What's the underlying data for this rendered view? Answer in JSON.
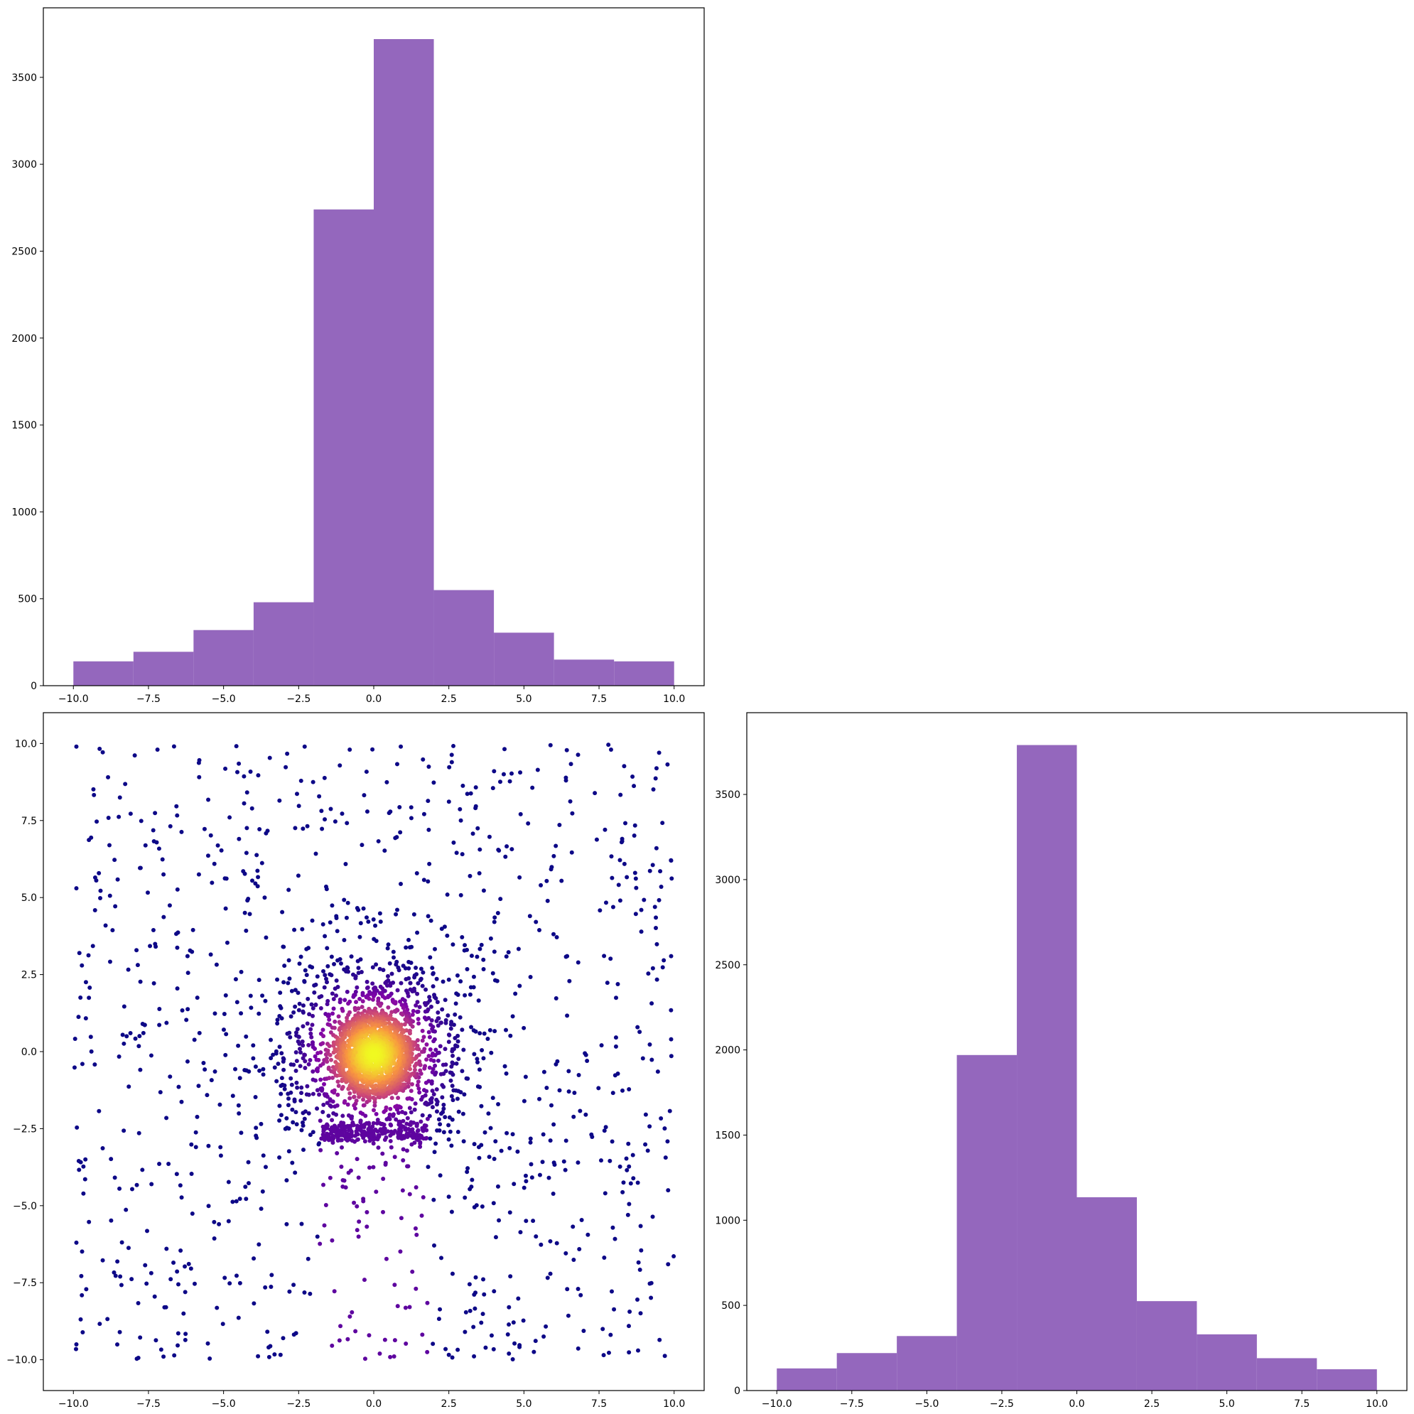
{
  "colors": {
    "bar": "#9467bd",
    "scatter_colormap": "plasma",
    "axis": "#000000"
  },
  "chart_data": [
    {
      "type": "bar",
      "id": "hist-x",
      "position_in_grid": "top-left",
      "title": "",
      "xlabel": "",
      "ylabel": "",
      "bin_edges": [
        -10,
        -8,
        -6,
        -4,
        -2,
        0,
        2,
        4,
        6,
        8,
        10
      ],
      "values": [
        140,
        195,
        320,
        480,
        2740,
        3720,
        550,
        305,
        150,
        140
      ],
      "xlim": [
        -11,
        11
      ],
      "ylim": [
        0,
        3900
      ],
      "xticks": [
        -10,
        -7.5,
        -5,
        -2.5,
        0,
        2.5,
        5,
        7.5,
        10
      ],
      "xtick_labels": [
        "−10.0",
        "−7.5",
        "−5.0",
        "−2.5",
        "0.0",
        "2.5",
        "5.0",
        "7.5",
        "10.0"
      ],
      "yticks": [
        0,
        500,
        1000,
        1500,
        2000,
        2500,
        3000,
        3500
      ],
      "ytick_labels": [
        "0",
        "500",
        "1000",
        "1500",
        "2000",
        "2500",
        "3000",
        "3500"
      ],
      "grid": false,
      "legend": "none"
    },
    {
      "type": "scatter",
      "id": "joint-scatter",
      "position_in_grid": "bottom-left",
      "title": "",
      "xlabel": "",
      "ylabel": "",
      "description": "Uniform background points over [-10,10]x[-10,10] plus a dense cluster near (0,0) colored by density with the plasma colormap (dark purple low, yellow high).",
      "sample_points": [
        [
          -9.9,
          9.9
        ],
        [
          -7.2,
          9.8
        ],
        [
          -2.3,
          9.9
        ],
        [
          -0.8,
          9.8
        ],
        [
          0.9,
          9.9
        ],
        [
          7.9,
          9.8
        ],
        [
          9.5,
          9.7
        ],
        [
          -9.9,
          5.3
        ],
        [
          -8.8,
          6.7
        ],
        [
          -4.8,
          7.6
        ],
        [
          2.9,
          7.5
        ],
        [
          6.4,
          8.8
        ],
        [
          9.9,
          6.2
        ],
        [
          -9.8,
          3.2
        ],
        [
          -6.2,
          3.1
        ],
        [
          -3.0,
          3.4
        ],
        [
          3.1,
          3.3
        ],
        [
          5.2,
          4.4
        ],
        [
          9.9,
          3.1
        ],
        [
          -9.7,
          -0.4
        ],
        [
          -8.1,
          0.6
        ],
        [
          -4.3,
          -0.6
        ],
        [
          4.4,
          0.7
        ],
        [
          7.1,
          -0.3
        ],
        [
          9.9,
          0.4
        ],
        [
          -9.6,
          -3.5
        ],
        [
          -7.4,
          -4.3
        ],
        [
          -3.9,
          -2.8
        ],
        [
          3.5,
          -3.1
        ],
        [
          6.8,
          -3.6
        ],
        [
          9.8,
          -4.5
        ],
        [
          -9.9,
          -6.2
        ],
        [
          -6.9,
          -6.4
        ],
        [
          -2.9,
          -5.6
        ],
        [
          2.6,
          -5.2
        ],
        [
          5.4,
          -6.0
        ],
        [
          9.8,
          -6.9
        ],
        [
          -9.9,
          -9.5
        ],
        [
          -7.0,
          -9.9
        ],
        [
          -3.5,
          -9.6
        ],
        [
          0.2,
          -9.8
        ],
        [
          4.5,
          -9.8
        ],
        [
          8.8,
          -9.7
        ],
        [
          -1.5,
          1.2
        ],
        [
          1.4,
          1.5
        ],
        [
          -1.2,
          -1.4
        ],
        [
          1.5,
          -1.2
        ],
        [
          0.0,
          1.8
        ],
        [
          0.0,
          -1.9
        ],
        [
          -0.8,
          0.6
        ],
        [
          0.7,
          0.5
        ],
        [
          -0.6,
          -0.6
        ],
        [
          0.5,
          -0.7
        ],
        [
          0.1,
          -0.1
        ],
        [
          0.0,
          -2.7
        ]
      ],
      "xlim": [
        -11,
        11
      ],
      "ylim": [
        -11,
        11
      ],
      "xticks": [
        -10,
        -7.5,
        -5,
        -2.5,
        0,
        2.5,
        5,
        7.5,
        10
      ],
      "xtick_labels": [
        "−10.0",
        "−7.5",
        "−5.0",
        "−2.5",
        "0.0",
        "2.5",
        "5.0",
        "7.5",
        "10.0"
      ],
      "yticks": [
        -10,
        -7.5,
        -5,
        -2.5,
        0,
        2.5,
        5,
        7.5,
        10
      ],
      "ytick_labels": [
        "−10.0",
        "−7.5",
        "−5.0",
        "−2.5",
        "0.0",
        "2.5",
        "5.0",
        "7.5",
        "10.0"
      ],
      "grid": false,
      "legend": "none"
    },
    {
      "type": "bar",
      "id": "hist-y",
      "position_in_grid": "bottom-right",
      "title": "",
      "xlabel": "",
      "ylabel": "",
      "bin_edges": [
        -10,
        -8,
        -6,
        -4,
        -2,
        0,
        2,
        4,
        6,
        8,
        10
      ],
      "values": [
        130,
        220,
        320,
        1970,
        3790,
        1135,
        525,
        330,
        190,
        125
      ],
      "xlim": [
        -11,
        11
      ],
      "ylim": [
        0,
        3980
      ],
      "xticks": [
        -10,
        -7.5,
        -5,
        -2.5,
        0,
        2.5,
        5,
        7.5,
        10
      ],
      "xtick_labels": [
        "−10.0",
        "−7.5",
        "−5.0",
        "−2.5",
        "0.0",
        "2.5",
        "5.0",
        "7.5",
        "10.0"
      ],
      "yticks": [
        0,
        500,
        1000,
        1500,
        2000,
        2500,
        3000,
        3500
      ],
      "ytick_labels": [
        "0",
        "500",
        "1000",
        "1500",
        "2000",
        "2500",
        "3000",
        "3500"
      ],
      "grid": false,
      "legend": "none"
    }
  ]
}
